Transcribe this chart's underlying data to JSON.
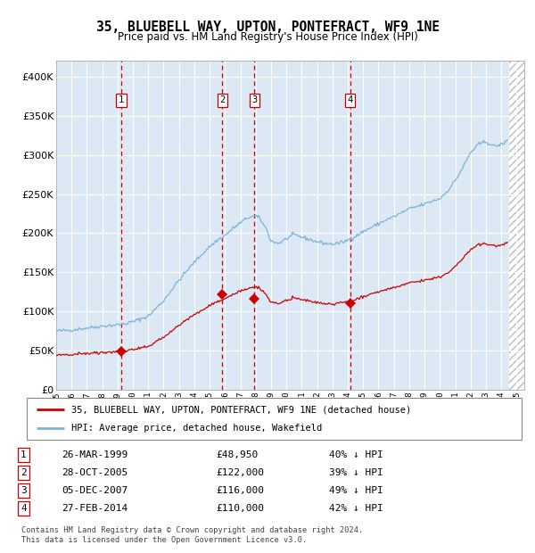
{
  "title": "35, BLUEBELL WAY, UPTON, PONTEFRACT, WF9 1NE",
  "subtitle": "Price paid vs. HM Land Registry's House Price Index (HPI)",
  "footer": "Contains HM Land Registry data © Crown copyright and database right 2024.\nThis data is licensed under the Open Government Licence v3.0.",
  "legend_line1": "35, BLUEBELL WAY, UPTON, PONTEFRACT, WF9 1NE (detached house)",
  "legend_line2": "HPI: Average price, detached house, Wakefield",
  "transactions": [
    {
      "label": "1",
      "date": 1999.23,
      "price": 48950,
      "pct": "40% ↓ HPI",
      "display_date": "26-MAR-1999"
    },
    {
      "label": "2",
      "date": 2005.82,
      "price": 122000,
      "pct": "39% ↓ HPI",
      "display_date": "28-OCT-2005"
    },
    {
      "label": "3",
      "date": 2007.92,
      "price": 116000,
      "pct": "49% ↓ HPI",
      "display_date": "05-DEC-2007"
    },
    {
      "label": "4",
      "date": 2014.15,
      "price": 110000,
      "pct": "42% ↓ HPI",
      "display_date": "27-FEB-2014"
    }
  ],
  "hpi_color": "#7ab4d8",
  "sale_color": "#cc0000",
  "dashed_color": "#cc0000",
  "background_chart": "#dce9f5",
  "ylim": [
    0,
    420000
  ],
  "xlim_start": 1995.0,
  "xlim_end": 2025.5,
  "hatch_start": 2024.5,
  "hpi_keypoints": [
    [
      1995.0,
      75000
    ],
    [
      1996.0,
      76500
    ],
    [
      1997.0,
      79000
    ],
    [
      1998.0,
      81500
    ],
    [
      1999.0,
      83000
    ],
    [
      1999.5,
      84500
    ],
    [
      2000.0,
      87000
    ],
    [
      2001.0,
      94000
    ],
    [
      2002.0,
      114000
    ],
    [
      2003.0,
      140000
    ],
    [
      2004.0,
      163000
    ],
    [
      2005.0,
      183000
    ],
    [
      2005.5,
      191000
    ],
    [
      2006.0,
      197000
    ],
    [
      2006.5,
      206000
    ],
    [
      2007.0,
      213000
    ],
    [
      2007.5,
      220000
    ],
    [
      2008.0,
      222000
    ],
    [
      2008.3,
      218000
    ],
    [
      2008.7,
      205000
    ],
    [
      2009.0,
      190000
    ],
    [
      2009.5,
      187000
    ],
    [
      2010.0,
      193000
    ],
    [
      2010.5,
      198000
    ],
    [
      2011.0,
      195000
    ],
    [
      2011.5,
      192000
    ],
    [
      2012.0,
      189000
    ],
    [
      2012.5,
      187000
    ],
    [
      2013.0,
      186000
    ],
    [
      2013.5,
      187500
    ],
    [
      2014.0,
      191000
    ],
    [
      2014.5,
      196000
    ],
    [
      2015.0,
      202000
    ],
    [
      2015.5,
      207000
    ],
    [
      2016.0,
      212000
    ],
    [
      2016.5,
      217000
    ],
    [
      2017.0,
      221000
    ],
    [
      2017.5,
      226000
    ],
    [
      2018.0,
      231000
    ],
    [
      2018.5,
      234000
    ],
    [
      2019.0,
      237000
    ],
    [
      2019.5,
      241000
    ],
    [
      2020.0,
      244000
    ],
    [
      2020.5,
      254000
    ],
    [
      2021.0,
      267000
    ],
    [
      2021.5,
      284000
    ],
    [
      2022.0,
      303000
    ],
    [
      2022.5,
      313000
    ],
    [
      2023.0,
      317000
    ],
    [
      2023.5,
      311000
    ],
    [
      2024.0,
      313000
    ],
    [
      2024.4,
      318000
    ]
  ],
  "sale_ratio": 0.59
}
